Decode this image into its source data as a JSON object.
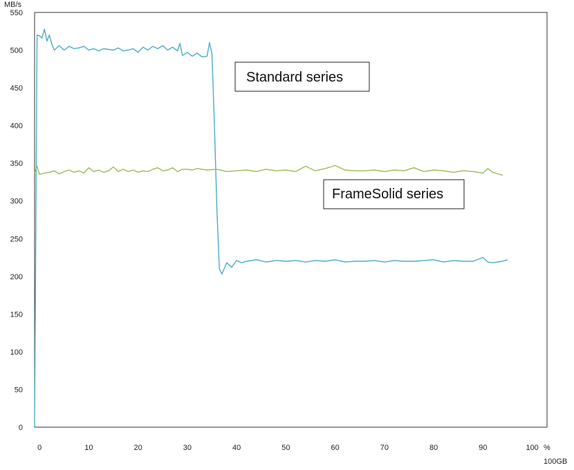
{
  "chart_data": {
    "type": "line",
    "ylabel": "MB/s",
    "xunit": "%",
    "xunit_sub": "100GB",
    "xlim": [
      -1,
      103
    ],
    "ylim": [
      0,
      550
    ],
    "xticks": [
      0,
      10,
      20,
      30,
      40,
      50,
      60,
      70,
      80,
      90,
      100
    ],
    "yticks": [
      0,
      50,
      100,
      150,
      200,
      250,
      300,
      350,
      400,
      450,
      500,
      550
    ],
    "grid": false,
    "colors": {
      "standard": "#4bacc6",
      "framesolid": "#9bbb59"
    },
    "annotations": [
      {
        "text": "Standard series",
        "series": "standard"
      },
      {
        "text": "FrameSolid series",
        "series": "framesolid"
      }
    ],
    "series": [
      {
        "key": "standard",
        "x": [
          -1,
          -0.5,
          0,
          0.5,
          1,
          1.5,
          2,
          2.5,
          3,
          4,
          5,
          6,
          7,
          8,
          9,
          10,
          11,
          12,
          13,
          14,
          15,
          16,
          17,
          18,
          19,
          20,
          21,
          22,
          23,
          24,
          25,
          26,
          27,
          28,
          28.5,
          29,
          30,
          31,
          32,
          33,
          34,
          34.5,
          35,
          35.5,
          36,
          36.5,
          37,
          38,
          39,
          40,
          41,
          42,
          44,
          46,
          48,
          50,
          52,
          54,
          56,
          58,
          60,
          62,
          64,
          66,
          68,
          70,
          72,
          74,
          76,
          78,
          80,
          82,
          84,
          86,
          88,
          90,
          91,
          92,
          94,
          95
        ],
        "y": [
          0,
          520,
          519,
          516,
          528,
          512,
          520,
          508,
          500,
          506,
          500,
          505,
          502,
          503,
          505,
          500,
          502,
          499,
          502,
          501,
          500,
          503,
          499,
          500,
          502,
          497,
          504,
          500,
          505,
          502,
          506,
          500,
          504,
          499,
          509,
          493,
          497,
          492,
          496,
          491,
          492,
          510,
          495,
          400,
          290,
          210,
          203,
          218,
          212,
          221,
          218,
          220,
          222,
          219,
          221,
          220,
          221,
          219,
          221,
          220,
          222,
          219,
          220,
          220,
          221,
          219,
          221,
          220,
          220,
          221,
          222,
          219,
          221,
          220,
          220,
          225,
          219,
          218,
          220,
          222
        ]
      },
      {
        "key": "framesolid",
        "x": [
          -1,
          -0.5,
          0,
          1,
          2,
          3,
          4,
          5,
          6,
          7,
          8,
          9,
          10,
          11,
          12,
          13,
          14,
          15,
          16,
          17,
          18,
          19,
          20,
          21,
          22,
          23,
          24,
          25,
          26,
          27,
          28,
          29,
          30,
          31,
          32,
          33,
          34,
          36,
          38,
          40,
          42,
          44,
          46,
          48,
          50,
          52,
          54,
          56,
          58,
          60,
          62,
          64,
          66,
          68,
          70,
          72,
          74,
          76,
          78,
          80,
          82,
          84,
          86,
          88,
          90,
          91,
          92,
          93,
          94
        ],
        "y": [
          337,
          346,
          335,
          337,
          338,
          340,
          336,
          339,
          341,
          338,
          340,
          337,
          344,
          339,
          341,
          338,
          340,
          345,
          339,
          342,
          339,
          341,
          338,
          340,
          339,
          342,
          344,
          340,
          341,
          344,
          339,
          342,
          342,
          341,
          343,
          342,
          341,
          342,
          339,
          340,
          341,
          339,
          342,
          340,
          341,
          339,
          346,
          340,
          343,
          347,
          341,
          340,
          340,
          341,
          339,
          341,
          340,
          344,
          339,
          341,
          340,
          338,
          340,
          339,
          337,
          343,
          338,
          336,
          334
        ]
      }
    ]
  }
}
